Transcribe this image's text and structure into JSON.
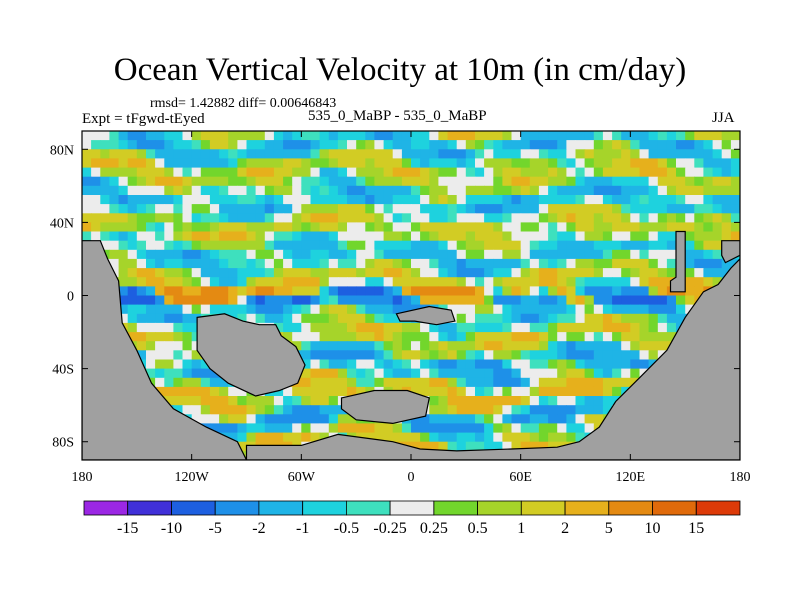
{
  "chart_data": {
    "type": "heatmap",
    "title": "Ocean Vertical Velocity at 10m (in cm/day)",
    "stats_line": "rmsd= 1.42882 diff= 0.00646843",
    "left_label": "Expt = tFgwd-tEyed",
    "center_label": "535_0_MaBP - 535_0_MaBP",
    "right_label": "JJA",
    "xlim": [
      -180,
      180
    ],
    "ylim": [
      -90,
      90
    ],
    "x_ticks": [
      {
        "value": -180,
        "label": "180"
      },
      {
        "value": -120,
        "label": "120W"
      },
      {
        "value": -60,
        "label": "60W"
      },
      {
        "value": 0,
        "label": "0"
      },
      {
        "value": 60,
        "label": "60E"
      },
      {
        "value": 120,
        "label": "120E"
      },
      {
        "value": 180,
        "label": "180"
      }
    ],
    "y_ticks": [
      {
        "value": 80,
        "label": "80N"
      },
      {
        "value": 40,
        "label": "40N"
      },
      {
        "value": 0,
        "label": "0"
      },
      {
        "value": -40,
        "label": "40S"
      },
      {
        "value": -80,
        "label": "80S"
      }
    ],
    "colorbar": {
      "levels": [
        "-15",
        "-10",
        "-5",
        "-2",
        "-1",
        "-0.5",
        "-0.25",
        "0.25",
        "0.5",
        "1",
        "2",
        "5",
        "10",
        "15"
      ],
      "colors": [
        "#9b27e4",
        "#4030d8",
        "#1d5fe0",
        "#1e90e8",
        "#1fb4e6",
        "#1ed2de",
        "#3ee0be",
        "#ececec",
        "#72d62c",
        "#a6d42a",
        "#d2cc24",
        "#e6b01c",
        "#e48a12",
        "#e06a0a",
        "#dd3a08"
      ]
    },
    "land_color": "#a0a0a0"
  }
}
